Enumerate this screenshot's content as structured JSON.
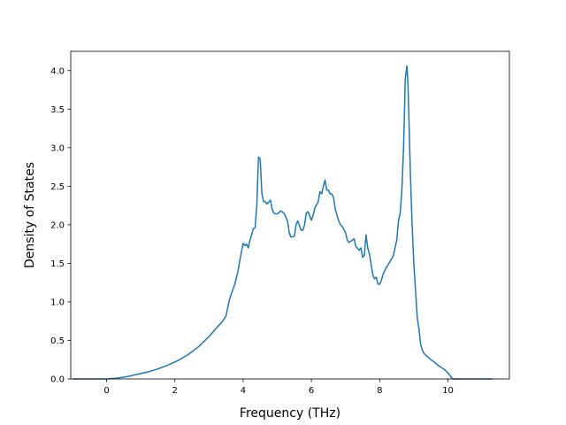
{
  "chart_data": {
    "type": "line",
    "title": "",
    "xlabel": "Frequency (THz)",
    "ylabel": "Density of States",
    "xlim": [
      -1.05,
      11.8
    ],
    "ylim": [
      0,
      4.25
    ],
    "xticks": [
      0,
      2,
      4,
      6,
      8,
      10
    ],
    "xtick_labels": [
      "0",
      "2",
      "4",
      "6",
      "8",
      "10"
    ],
    "yticks": [
      0.0,
      0.5,
      1.0,
      1.5,
      2.0,
      2.5,
      3.0,
      3.5,
      4.0
    ],
    "ytick_labels": [
      "0.0",
      "0.5",
      "1.0",
      "1.5",
      "2.0",
      "2.5",
      "3.0",
      "3.5",
      "4.0"
    ],
    "grid": false,
    "line_color": "#1f77b4",
    "series": [
      {
        "x": [
          -1.0,
          -0.5,
          0.0,
          0.3,
          0.6,
          0.9,
          1.2,
          1.5,
          1.8,
          2.1,
          2.4,
          2.7,
          3.0,
          3.2,
          3.4,
          3.5,
          3.6,
          3.65,
          3.75,
          3.85,
          3.95,
          4.0,
          4.05,
          4.1,
          4.15,
          4.2,
          4.3,
          4.35,
          4.4,
          4.45,
          4.5,
          4.55,
          4.6,
          4.65,
          4.7,
          4.8,
          4.85,
          4.9,
          5.0,
          5.1,
          5.2,
          5.3,
          5.35,
          5.4,
          5.5,
          5.55,
          5.6,
          5.7,
          5.75,
          5.8,
          5.85,
          5.9,
          6.0,
          6.05,
          6.1,
          6.2,
          6.25,
          6.3,
          6.35,
          6.4,
          6.45,
          6.5,
          6.55,
          6.6,
          6.65,
          6.7,
          6.8,
          6.85,
          6.9,
          7.0,
          7.05,
          7.1,
          7.2,
          7.25,
          7.3,
          7.4,
          7.45,
          7.5,
          7.55,
          7.6,
          7.65,
          7.7,
          7.8,
          7.85,
          7.9,
          7.95,
          8.0,
          8.05,
          8.1,
          8.2,
          8.3,
          8.4,
          8.5,
          8.55,
          8.6,
          8.65,
          8.7,
          8.75,
          8.8,
          8.83,
          8.85,
          8.9,
          8.95,
          9.0,
          9.05,
          9.1,
          9.15,
          9.2,
          9.25,
          9.3,
          9.4,
          9.5,
          9.6,
          9.7,
          9.8,
          9.9,
          10.0,
          10.05,
          10.1,
          10.15,
          10.2,
          10.3,
          10.8,
          11.3
        ],
        "y": [
          0.0,
          0.0,
          0.0,
          0.01,
          0.03,
          0.06,
          0.09,
          0.13,
          0.18,
          0.24,
          0.32,
          0.42,
          0.55,
          0.65,
          0.75,
          0.82,
          1.03,
          1.1,
          1.22,
          1.4,
          1.65,
          1.76,
          1.73,
          1.75,
          1.7,
          1.8,
          1.95,
          1.96,
          2.25,
          2.88,
          2.85,
          2.4,
          2.3,
          2.3,
          2.27,
          2.32,
          2.2,
          2.15,
          2.14,
          2.18,
          2.15,
          2.05,
          1.9,
          1.84,
          1.85,
          2.0,
          2.05,
          1.93,
          1.93,
          2.0,
          2.15,
          2.17,
          2.06,
          2.12,
          2.22,
          2.3,
          2.43,
          2.4,
          2.5,
          2.58,
          2.45,
          2.45,
          2.4,
          2.4,
          2.35,
          2.2,
          2.05,
          2.0,
          1.98,
          1.9,
          1.8,
          1.77,
          1.8,
          1.82,
          1.72,
          1.67,
          1.7,
          1.58,
          1.6,
          1.87,
          1.7,
          1.62,
          1.35,
          1.3,
          1.32,
          1.23,
          1.23,
          1.28,
          1.36,
          1.45,
          1.52,
          1.6,
          1.8,
          2.05,
          2.15,
          2.45,
          3.0,
          3.9,
          4.06,
          3.8,
          3.5,
          2.65,
          2.0,
          1.5,
          1.15,
          0.8,
          0.65,
          0.45,
          0.37,
          0.33,
          0.29,
          0.25,
          0.22,
          0.18,
          0.15,
          0.12,
          0.08,
          0.05,
          0.02,
          0.0,
          0.0,
          0.0,
          0.0,
          0.0
        ]
      }
    ]
  }
}
